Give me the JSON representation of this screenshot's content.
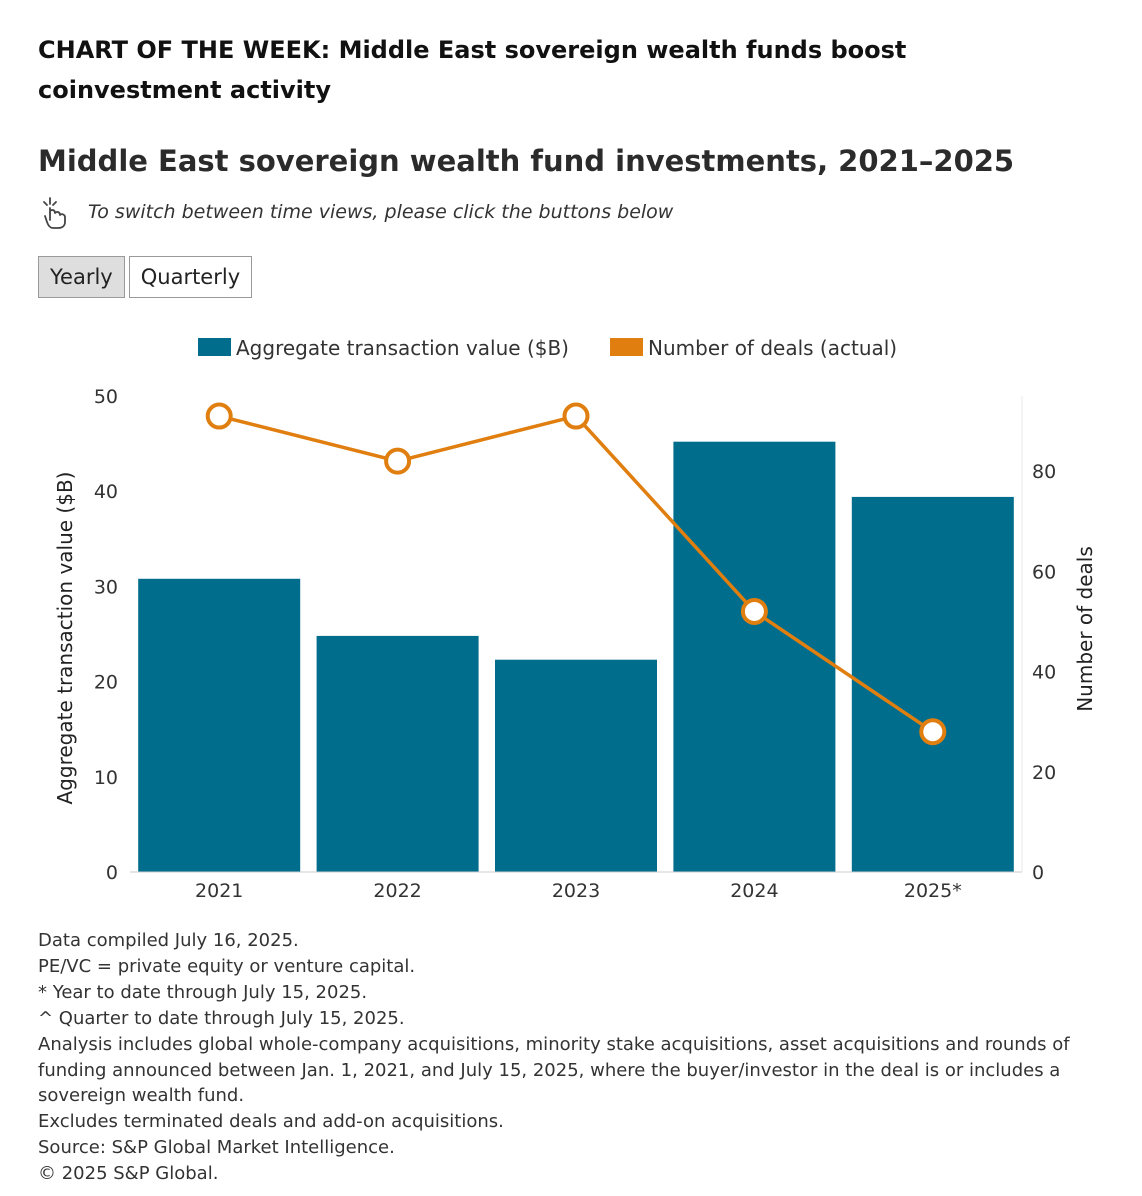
{
  "headline": "CHART OF THE WEEK: Middle East sovereign wealth funds boost coinvestment activity",
  "chart_title": "Middle East sovereign wealth fund investments, 2021–2025",
  "instruction": {
    "icon": "pointing-hand-icon",
    "text": "To switch between time views, please click the buttons below"
  },
  "toggles": [
    {
      "label": "Yearly",
      "active": true
    },
    {
      "label": "Quarterly",
      "active": false
    }
  ],
  "colors": {
    "bar": "#006d8c",
    "line": "#e07f10",
    "axis_text": "#333333"
  },
  "chart_data": {
    "type": "bar",
    "combo": "bar+line",
    "categories": [
      "2021",
      "2022",
      "2023",
      "2024",
      "2025*"
    ],
    "series": [
      {
        "name": "Aggregate transaction value ($B)",
        "type": "bar",
        "axis": "left",
        "values": [
          30.8,
          24.8,
          22.3,
          45.2,
          39.4
        ]
      },
      {
        "name": "Number of deals (actual)",
        "type": "line",
        "axis": "right",
        "values": [
          91,
          82,
          91,
          52,
          28
        ]
      }
    ],
    "ylabel": "Aggregate transaction value ($B)",
    "ylabel_right": "Number of deals",
    "ylim": [
      0,
      50
    ],
    "yticks": [
      0,
      10,
      20,
      30,
      40,
      50
    ],
    "ylim_right": [
      0,
      95
    ],
    "yticks_right": [
      0,
      20,
      40,
      60,
      80
    ],
    "grid": false,
    "legend_position": "top"
  },
  "notes": [
    "Data compiled July 16, 2025.",
    "PE/VC = private equity or venture capital.",
    "* Year to date through July 15, 2025.",
    "^ Quarter to date through July 15, 2025.",
    "Analysis includes global whole-company acquisitions, minority stake acquisitions, asset acquisitions and rounds of funding announced between Jan. 1, 2021, and July 15, 2025, where the buyer/investor in the deal is or includes a sovereign wealth fund.",
    "Excludes terminated deals and add-on acquisitions.",
    "Source: S&P Global Market Intelligence.",
    "© 2025 S&P Global."
  ]
}
